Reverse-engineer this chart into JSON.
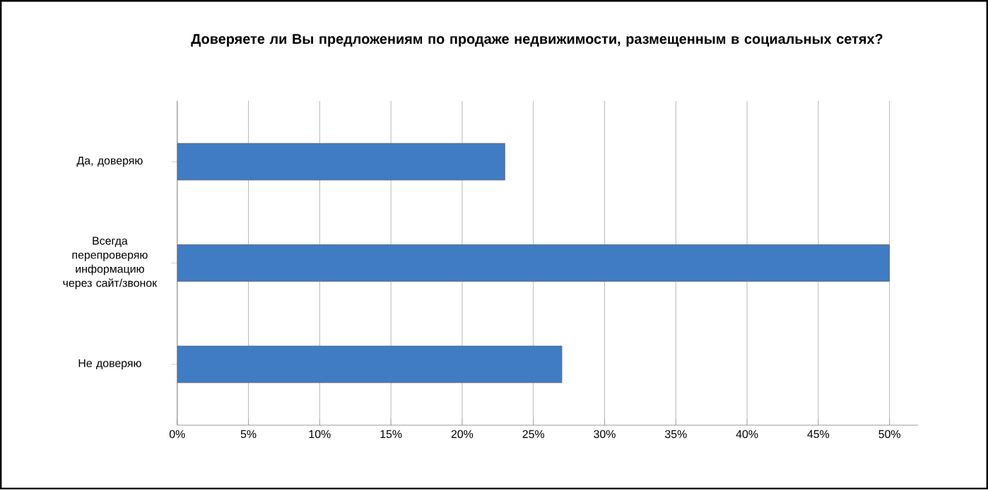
{
  "chart_data": {
    "type": "bar",
    "orientation": "horizontal",
    "title": "Доверяете ли Вы предложениям по продаже недвижимости, размещенным в социальных сетях?",
    "categories": [
      "Да, доверяю",
      "Всегда перепроверяю информацию через сайт/звонок",
      "Не доверяю"
    ],
    "values": [
      23,
      50,
      27
    ],
    "color": "#3f7cc4",
    "xlim": [
      0,
      52
    ],
    "xticks": [
      {
        "value": 0,
        "label": "0%"
      },
      {
        "value": 5,
        "label": "5%"
      },
      {
        "value": 10,
        "label": "10%"
      },
      {
        "value": 15,
        "label": "15%"
      },
      {
        "value": 20,
        "label": "20%"
      },
      {
        "value": 25,
        "label": "25%"
      },
      {
        "value": 30,
        "label": "30%"
      },
      {
        "value": 35,
        "label": "35%"
      },
      {
        "value": 40,
        "label": "40%"
      },
      {
        "value": 45,
        "label": "45%"
      },
      {
        "value": 50,
        "label": "50%"
      }
    ],
    "grid": "x"
  }
}
